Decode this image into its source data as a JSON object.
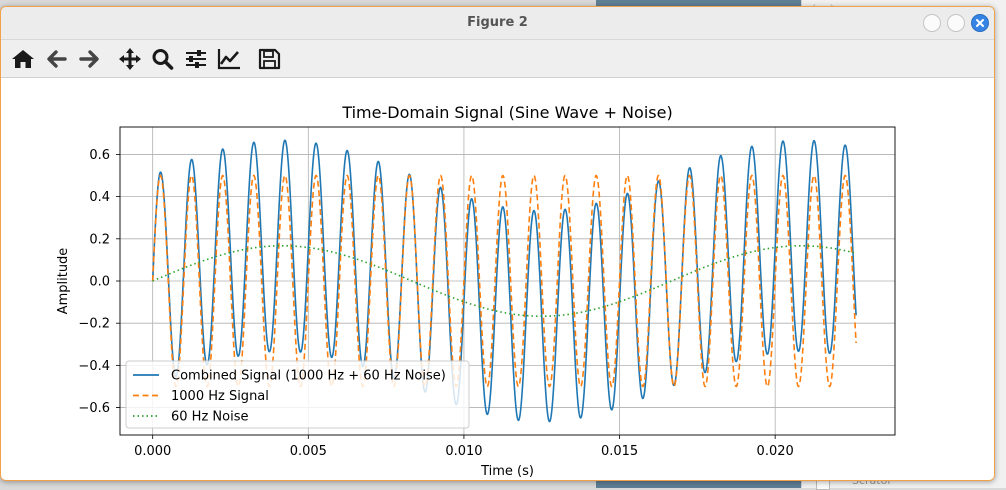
{
  "window": {
    "title": "Figure 2",
    "accent_color": "#3584e4"
  },
  "background": {
    "partial_label": "Scrator"
  },
  "toolbar": {
    "items": [
      {
        "icon": "home-icon",
        "tooltip": "Home"
      },
      {
        "icon": "back-arrow-icon",
        "tooltip": "Back"
      },
      {
        "icon": "forward-arrow-icon",
        "tooltip": "Forward"
      },
      {
        "icon": "pan-icon",
        "tooltip": "Pan"
      },
      {
        "icon": "zoom-icon",
        "tooltip": "Zoom"
      },
      {
        "icon": "subplots-icon",
        "tooltip": "Configure subplots"
      },
      {
        "icon": "edit-axis-icon",
        "tooltip": "Edit axis"
      },
      {
        "icon": "save-icon",
        "tooltip": "Save"
      }
    ]
  },
  "chart_data": {
    "type": "line",
    "title": "Time-Domain Signal (Sine Wave + Noise)",
    "xlabel": "Time (s)",
    "ylabel": "Amplitude",
    "xlim": [
      -0.00105,
      0.02385
    ],
    "ylim": [
      -0.73,
      0.73
    ],
    "x_ticks": [
      0.0,
      0.005,
      0.01,
      0.015,
      0.02
    ],
    "x_tick_labels": [
      "0.000",
      "0.005",
      "0.010",
      "0.015",
      "0.020"
    ],
    "y_ticks": [
      -0.6,
      -0.4,
      -0.2,
      0.0,
      0.2,
      0.4,
      0.6
    ],
    "y_tick_labels": [
      "−0.6",
      "−0.4",
      "−0.2",
      "0.0",
      "0.2",
      "0.4",
      "0.6"
    ],
    "grid": true,
    "legend_position": "lower-left",
    "t_start": 0.0,
    "t_end": 0.0226,
    "series": [
      {
        "name": "Combined Signal (1000 Hz + 60 Hz Noise)",
        "color": "#1f77b4",
        "style": "solid",
        "components": [
          {
            "amp": 0.5,
            "freq": 1000
          },
          {
            "amp": 0.167,
            "freq": 60
          }
        ]
      },
      {
        "name": "1000 Hz Signal",
        "color": "#ff7f0e",
        "style": "dashed",
        "components": [
          {
            "amp": 0.5,
            "freq": 1000
          }
        ]
      },
      {
        "name": "60 Hz Noise",
        "color": "#2ca02c",
        "style": "dotted",
        "components": [
          {
            "amp": 0.167,
            "freq": 60
          }
        ]
      }
    ]
  }
}
